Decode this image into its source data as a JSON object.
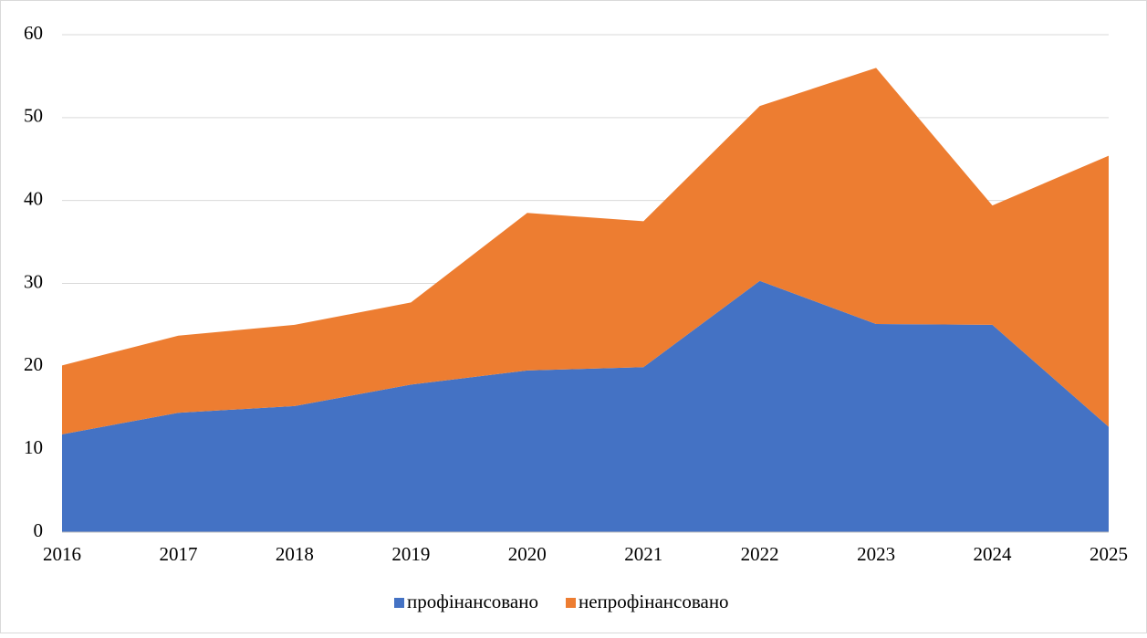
{
  "chart_data": {
    "type": "stacked_area",
    "categories": [
      "2016",
      "2017",
      "2018",
      "2019",
      "2020",
      "2021",
      "2022",
      "2023",
      "2024",
      "2025"
    ],
    "series": [
      {
        "name": "профінансовано",
        "color": "#4472c4",
        "values": [
          11.8,
          14.4,
          15.2,
          17.8,
          19.5,
          19.9,
          30.3,
          25.1,
          25.0,
          12.7
        ]
      },
      {
        "name": "непрофінансовано",
        "color": "#ed7d31",
        "values": [
          8.3,
          9.3,
          9.8,
          9.9,
          19.0,
          17.6,
          21.1,
          30.9,
          14.4,
          32.7
        ]
      }
    ],
    "ylim": [
      0,
      60
    ],
    "yticks": [
      0,
      10,
      20,
      30,
      40,
      50,
      60
    ],
    "grid": true,
    "legend": "bottom"
  }
}
